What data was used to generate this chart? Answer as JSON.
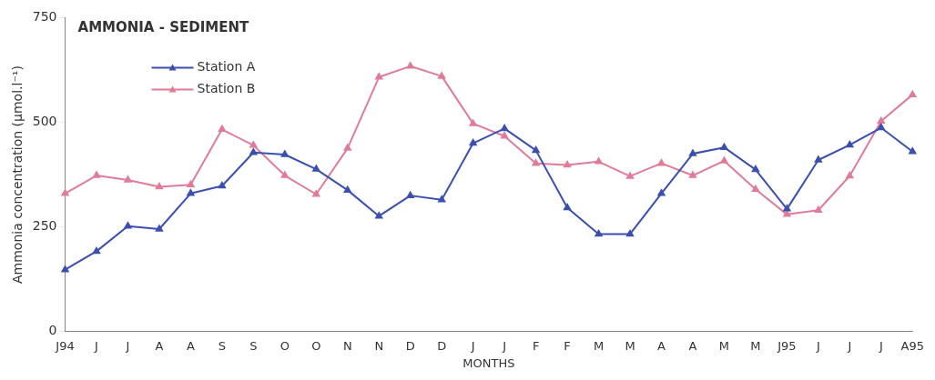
{
  "chart_data": {
    "type": "line",
    "title": "AMMONIA - SEDIMENT",
    "xlabel": "MONTHS",
    "ylabel": "Ammonia concentration (µmol.l⁻¹)",
    "categories": [
      "J94",
      "J",
      "J",
      "A",
      "A",
      "S",
      "S",
      "O",
      "O",
      "N",
      "N",
      "D",
      "D",
      "J",
      "J",
      "F",
      "F",
      "M",
      "M",
      "A",
      "A",
      "M",
      "M",
      "J95",
      "J",
      "J",
      "J",
      "A95"
    ],
    "series": [
      {
        "name": "Station A",
        "color": "#3a4fb0",
        "values": [
          148,
          192,
          252,
          245,
          330,
          348,
          428,
          423,
          388,
          338,
          276,
          325,
          315,
          450,
          485,
          433,
          296,
          233,
          233,
          330,
          425,
          440,
          387,
          293,
          410,
          446,
          487,
          430
        ]
      },
      {
        "name": "Station B",
        "color": "#e07b9a",
        "values": [
          330,
          373,
          362,
          346,
          351,
          483,
          445,
          373,
          328,
          438,
          608,
          634,
          610,
          497,
          467,
          402,
          398,
          406,
          371,
          402,
          373,
          408,
          340,
          280,
          290,
          372,
          503,
          566
        ]
      }
    ],
    "ylim": [
      0,
      750
    ],
    "yticks": [
      0,
      250,
      500,
      750
    ],
    "grid": false,
    "legend": "top left",
    "marker": "triangle",
    "line_style": "solid"
  }
}
